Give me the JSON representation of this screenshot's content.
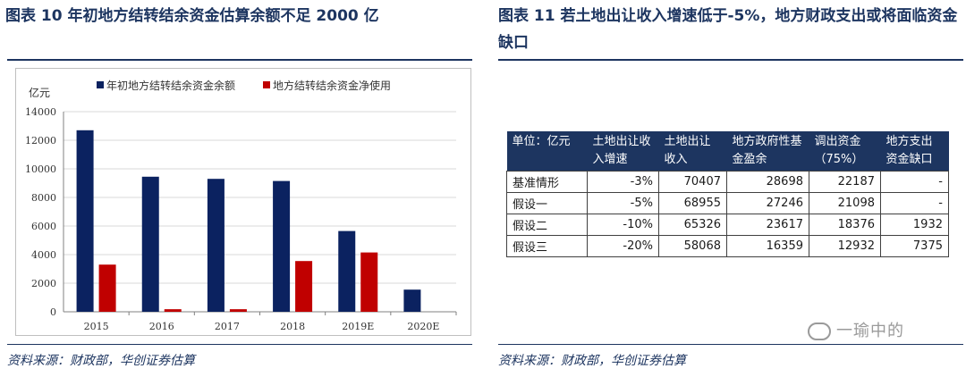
{
  "left": {
    "title": "图表 10 年初地方结转结余资金估算余额不足 2000 亿",
    "source": "资料来源：财政部，华创证券估算"
  },
  "right": {
    "title": "图表 11 若土地出让收入增速低于-5%，地方财政支出或将面临资金缺口",
    "source": "资料来源：财政部，华创证券估算",
    "table": {
      "headers": [
        "单位：亿元",
        "土地出让收入增速",
        "土地出让收入",
        "地方政府性基金盈余",
        "调出资金（75%）",
        "地方支出资金缺口"
      ],
      "rows": [
        [
          "基准情形",
          "-3%",
          "70407",
          "28698",
          "22187",
          "-"
        ],
        [
          "假设一",
          "-5%",
          "68955",
          "27246",
          "21098",
          "-"
        ],
        [
          "假设二",
          "-10%",
          "65326",
          "23617",
          "18376",
          "1932"
        ],
        [
          "假设三",
          "-20%",
          "58068",
          "16359",
          "12932",
          "7375"
        ]
      ]
    }
  },
  "watermark": "一瑜中的",
  "chart_data": {
    "type": "bar",
    "ylabel": "亿元",
    "ylim": [
      0,
      14000
    ],
    "yticks": [
      0,
      2000,
      4000,
      6000,
      8000,
      10000,
      12000,
      14000
    ],
    "categories": [
      "2015",
      "2016",
      "2017",
      "2018",
      "2019E",
      "2020E"
    ],
    "series": [
      {
        "name": "年初地方结转结余资金余额",
        "color": "#0b2260",
        "values": [
          12700,
          9450,
          9300,
          9150,
          5650,
          1550
        ]
      },
      {
        "name": "地方结转结余资金净使用",
        "color": "#c00000",
        "values": [
          3300,
          180,
          180,
          3550,
          4150,
          null
        ]
      }
    ],
    "legend": "top",
    "grid": true
  }
}
